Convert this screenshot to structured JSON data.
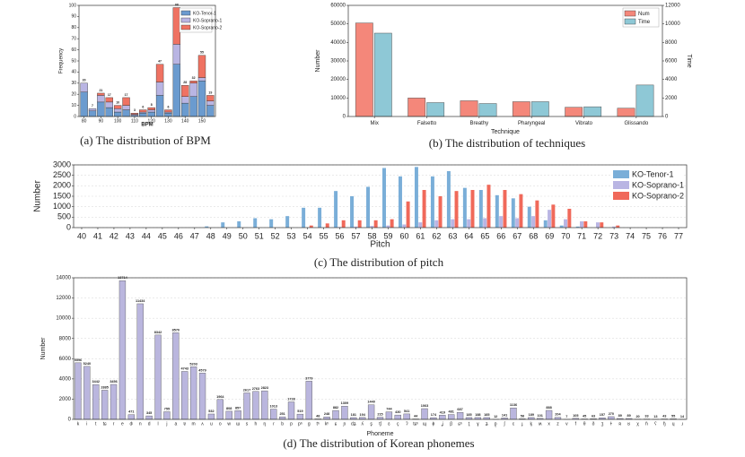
{
  "chart_data": [
    {
      "type": "stacked_bar",
      "caption": "(a) The distribution of BPM",
      "xlabel": "BPM",
      "ylabel": "Frequency",
      "x": [
        80,
        85,
        90,
        95,
        100,
        105,
        110,
        115,
        120,
        125,
        130,
        135,
        140,
        145,
        150,
        155
      ],
      "xlim": [
        77,
        158
      ],
      "xticks": [
        80,
        90,
        100,
        110,
        120,
        130,
        140,
        150
      ],
      "ylim": [
        0,
        100
      ],
      "yticks": [
        0,
        10,
        20,
        30,
        40,
        50,
        60,
        70,
        80,
        90,
        100
      ],
      "series": [
        {
          "name": "KO-Tenor-1",
          "color": "#6b9bcf",
          "values": [
            22,
            5,
            13,
            8,
            4,
            6,
            1,
            3,
            4,
            19,
            3,
            47,
            12,
            18,
            32,
            10
          ]
        },
        {
          "name": "KO-Soprano-1",
          "color": "#b9b5e3",
          "values": [
            8,
            2,
            6,
            5,
            3,
            4,
            1,
            1,
            2,
            12,
            1,
            18,
            6,
            12,
            3,
            4
          ]
        },
        {
          "name": "KO-Soprano-2",
          "color": "#ef7262",
          "values": [
            0,
            0,
            2,
            4,
            3,
            7,
            1,
            2,
            2,
            16,
            2,
            33,
            10,
            2,
            20,
            5
          ]
        }
      ],
      "totals": [
        30,
        7,
        21,
        17,
        10,
        17,
        3,
        6,
        8,
        47,
        6,
        98,
        28,
        32,
        55,
        19
      ],
      "legend": "upper right",
      "grid": false
    },
    {
      "type": "grouped_bar",
      "caption": "(b) The distribution of techniques",
      "xlabel": "Technique",
      "ylabel": "Number",
      "y2label": "Time",
      "categories": [
        "Mix",
        "Falsetto",
        "Breathy",
        "Pharyngeal",
        "Vibrato",
        "Glissando"
      ],
      "ylim": [
        0,
        60000
      ],
      "yticks": [
        0,
        10000,
        20000,
        30000,
        40000,
        50000,
        60000
      ],
      "y2lim": [
        0,
        12000
      ],
      "y2ticks": [
        0,
        2000,
        4000,
        6000,
        8000,
        10000,
        12000
      ],
      "series": [
        {
          "name": "Num",
          "color": "#f4877a",
          "values": [
            50500,
            10000,
            8500,
            8000,
            5000,
            4500
          ]
        },
        {
          "name": "Time",
          "color": "#8ec8d6",
          "axis": "y2",
          "values": [
            9000,
            1500,
            1400,
            1600,
            1050,
            3400
          ]
        }
      ],
      "legend": "upper right",
      "grid": false
    },
    {
      "type": "grouped_bar",
      "caption": "(c) The distribution of pitch",
      "xlabel": "Pitch",
      "ylabel": "Number",
      "categories": [
        40,
        41,
        42,
        43,
        44,
        45,
        46,
        47,
        48,
        49,
        50,
        51,
        52,
        53,
        54,
        55,
        56,
        57,
        58,
        59,
        60,
        61,
        62,
        63,
        64,
        65,
        66,
        67,
        68,
        69,
        70,
        71,
        72,
        73,
        74,
        75,
        76,
        77
      ],
      "ylim": [
        0,
        3000
      ],
      "yticks": [
        0,
        500,
        1000,
        1500,
        2000,
        2500,
        3000
      ],
      "series": [
        {
          "name": "KO-Tenor-1",
          "color": "#7aaed8",
          "values": [
            0,
            0,
            0,
            0,
            0,
            0,
            0,
            0,
            60,
            250,
            300,
            450,
            400,
            550,
            950,
            950,
            1750,
            1500,
            1950,
            2850,
            2450,
            2900,
            2450,
            2700,
            1900,
            1800,
            1550,
            1400,
            1000,
            350,
            100,
            50,
            0,
            0,
            0,
            0,
            0,
            0
          ]
        },
        {
          "name": "KO-Soprano-1",
          "color": "#b9b5e3",
          "values": [
            0,
            0,
            0,
            0,
            0,
            0,
            0,
            0,
            0,
            0,
            0,
            0,
            0,
            0,
            0,
            0,
            30,
            50,
            80,
            100,
            150,
            250,
            350,
            400,
            400,
            450,
            550,
            450,
            550,
            850,
            400,
            300,
            250,
            50,
            0,
            0,
            0,
            0
          ]
        },
        {
          "name": "KO-Soprano-2",
          "color": "#f0695a",
          "values": [
            0,
            0,
            0,
            0,
            0,
            0,
            0,
            0,
            0,
            0,
            0,
            0,
            0,
            0,
            100,
            200,
            350,
            350,
            350,
            400,
            1250,
            1800,
            1500,
            1750,
            1800,
            2050,
            1800,
            1600,
            1300,
            1100,
            900,
            300,
            250,
            100,
            0,
            0,
            0,
            0
          ]
        }
      ],
      "legend": "upper right",
      "grid": true
    },
    {
      "type": "bar",
      "caption": "(d) The distribution of Korean phonemes",
      "xlabel": "Phoneme",
      "ylabel": "Number",
      "categories": [
        "k",
        "i",
        "t",
        "tɕ",
        "r",
        "e",
        "dʲ",
        "n",
        "d",
        "l",
        "j",
        "a",
        "ɐ",
        "m",
        "ʌ",
        "u",
        "o",
        "w",
        "ɯ",
        "s",
        "h",
        "ŋ",
        "ɾ",
        "b",
        "p",
        "pʰ",
        "ɡ",
        "tʰ",
        "kʰ",
        "ɕ",
        "ɲ",
        "dʑ",
        "ʎ",
        "s͈",
        "tʃ",
        "ɛ",
        "ç",
        "ʔ",
        "tɕʰ",
        "ɰ",
        "ɸ",
        "ʝ",
        "β",
        "ɕʰ",
        "t͈",
        "ɣ",
        "ʑ",
        "p͈",
        "ʃ",
        "c",
        "ɟ",
        "k͈",
        "ʍ",
        "x",
        "z",
        "v",
        "f",
        "θ",
        "ð",
        "ʒ",
        "ɫ",
        "ʀ",
        "ʁ",
        "χ",
        "ɦ",
        "ʕ",
        "ɧ",
        "ɥ",
        "ɹ"
      ],
      "values": [
        5596,
        5240,
        3442,
        2885,
        3456,
        13714,
        471,
        11434,
        345,
        8342,
        755,
        8570,
        4743,
        5203,
        4579,
        532,
        1964,
        808,
        857,
        2617,
        2763,
        2823,
        1013,
        251,
        1728,
        519,
        3779,
        48,
        248,
        882,
        1309,
        181,
        194,
        1440,
        215,
        744,
        430,
        541,
        44,
        1063,
        174,
        419,
        481,
        687,
        185,
        188,
        185,
        12,
        141,
        1136,
        58,
        189,
        101,
        888,
        204,
        7,
        105,
        45,
        63,
        157,
        270,
        89,
        89,
        20,
        33,
        13,
        43,
        55,
        14
      ],
      "color": "#bab6de",
      "ylim": [
        0,
        14000
      ],
      "yticks": [
        0,
        2000,
        4000,
        6000,
        8000,
        10000,
        12000,
        14000
      ],
      "grid": true
    }
  ]
}
